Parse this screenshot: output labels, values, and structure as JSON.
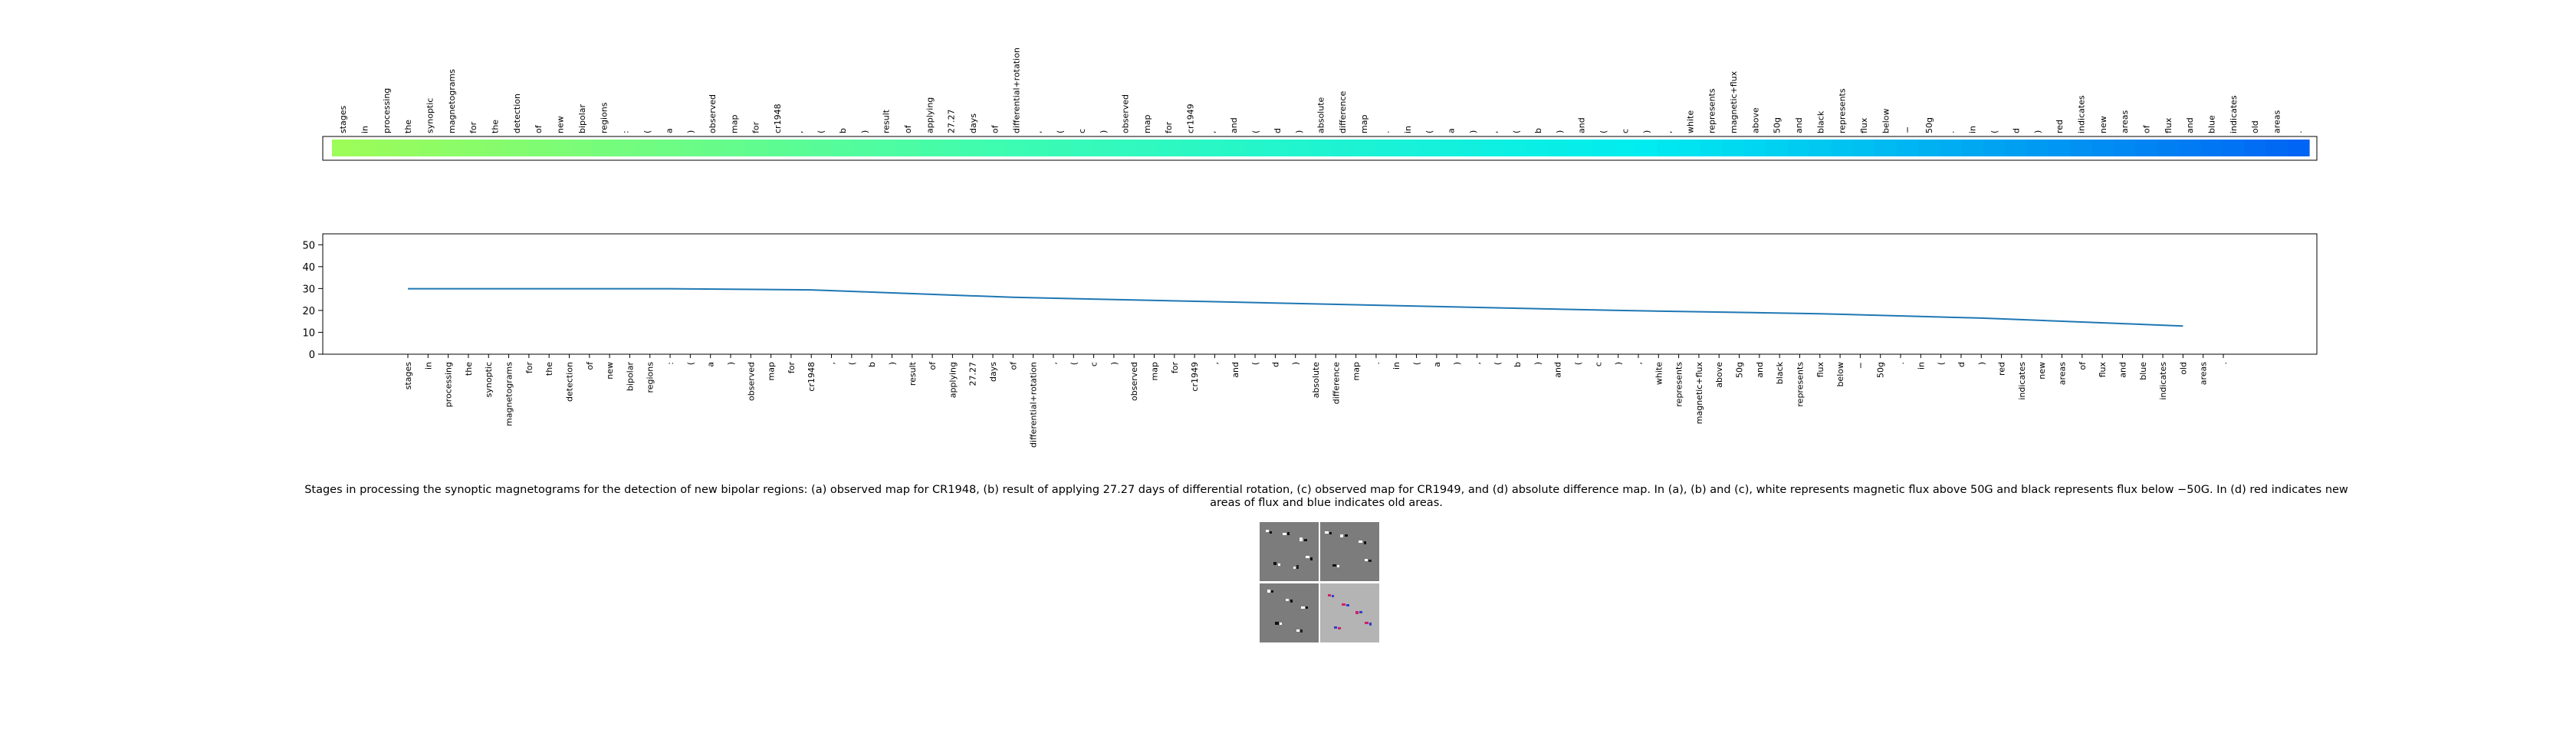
{
  "chart_data": [
    {
      "type": "heatmap",
      "tokens": [
        "stages",
        "in",
        "processing",
        "the",
        "synoptic",
        "magnetograms",
        "for",
        "the",
        "detection",
        "of",
        "new",
        "bipolar",
        "regions",
        ":",
        "(",
        "a",
        ")",
        "observed",
        "map",
        "for",
        "cr1948",
        ",",
        "(",
        "b",
        ")",
        "result",
        "of",
        "applying",
        "27.27",
        "days",
        "of",
        "differential+rotation",
        ",",
        "(",
        "c",
        ")",
        "observed",
        "map",
        "for",
        "cr1949",
        ",",
        "and",
        "(",
        "d",
        ")",
        "absolute",
        "difference",
        "map",
        ".",
        "in",
        "(",
        "a",
        ")",
        ",",
        "(",
        "b",
        ")",
        "and",
        "(",
        "c",
        ")",
        ",",
        "white",
        "represents",
        "magnetic+flux",
        "above",
        "50g",
        "and",
        "black",
        "represents",
        "flux",
        "below",
        "−",
        "50g",
        ".",
        "in",
        "(",
        "d",
        ")",
        "red",
        "indicates",
        "new",
        "areas",
        "of",
        "flux",
        "and",
        "blue",
        "indicates",
        "old",
        "areas",
        "."
      ],
      "colormap": [
        "#9cfc58",
        "#3efcb0",
        "#00ecf0",
        "#0064f4"
      ],
      "grid": false
    },
    {
      "type": "line",
      "x": [
        "stages",
        "in",
        "processing",
        "the",
        "synoptic",
        "magnetograms",
        "for",
        "the",
        "detection",
        "of",
        "new",
        "bipolar",
        "regions",
        ":",
        "(",
        "a",
        ")",
        "observed",
        "map",
        "for",
        "cr1948",
        ",",
        "(",
        "b",
        ")",
        "result",
        "of",
        "applying",
        "27.27",
        "days",
        "of",
        "differential+rotation",
        ",",
        "(",
        "c",
        ")",
        "observed",
        "map",
        "for",
        "cr1949",
        ",",
        "and",
        "(",
        "d",
        ")",
        "absolute",
        "difference",
        "map",
        ".",
        "in",
        "(",
        "a",
        ")",
        ",",
        "(",
        "b",
        ")",
        "and",
        "(",
        "c",
        ")",
        ",",
        "white",
        "represents",
        "magnetic+flux",
        "above",
        "50g",
        "and",
        "black",
        "represents",
        "flux",
        "below",
        "−",
        "50g",
        ".",
        "in",
        "(",
        "d",
        ")",
        "red",
        "indicates",
        "new",
        "areas",
        "of",
        "flux",
        "and",
        "blue",
        "indicates",
        "old",
        "areas",
        "."
      ],
      "y_points": [
        [
          0,
          29.9
        ],
        [
          13,
          29.9
        ],
        [
          20,
          29.4
        ],
        [
          30,
          26.0
        ],
        [
          40,
          24.0
        ],
        [
          50,
          22.0
        ],
        [
          60,
          20.0
        ],
        [
          70,
          18.5
        ],
        [
          78,
          16.5
        ],
        [
          88,
          12.9
        ]
      ],
      "yticks": [
        0,
        10,
        20,
        30,
        40,
        50
      ],
      "ylim": [
        0,
        55
      ],
      "color": "#1f77b4",
      "grid": false
    }
  ],
  "caption": "Stages in processing the synoptic magnetograms for the detection of new bipolar regions: (a) observed map for CR1948, (b) result of applying 27.27 days of differential rotation, (c) observed map for CR1949, and (d) absolute difference map. In (a), (b) and (c), white represents magnetic flux above 50G and black represents flux below −50G. In (d) red indicates new areas of flux and blue indicates old areas."
}
